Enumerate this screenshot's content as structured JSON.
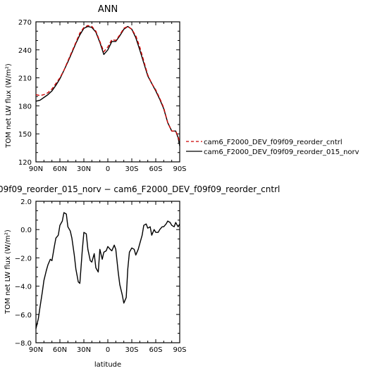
{
  "chart_data": [
    {
      "type": "line",
      "title": "ANN",
      "xlabel": "",
      "ylabel": "TOM net LW flux (W/m²)",
      "x_ticks": [
        90,
        60,
        30,
        0,
        -30,
        -60,
        -90
      ],
      "x_tick_labels": [
        "90N",
        "60N",
        "30N",
        "0",
        "30S",
        "60S",
        "90S"
      ],
      "xlim": [
        90,
        -90
      ],
      "y_ticks": [
        120,
        150,
        180,
        210,
        240,
        270
      ],
      "y_tick_labels": [
        "120",
        "150",
        "180",
        "210",
        "240",
        "270"
      ],
      "ylim": [
        120,
        270
      ],
      "grid": false,
      "legend_position": "right",
      "series": [
        {
          "name": "cam6_F2000_DEV_f09f09_reorder_cntrl",
          "color": "#cc0000",
          "line_style": "dashed",
          "x": [
            90,
            85,
            80,
            75,
            70,
            65,
            60,
            55,
            50,
            45,
            40,
            35,
            30,
            25,
            20,
            15,
            10,
            5,
            0,
            -5,
            -10,
            -15,
            -20,
            -25,
            -30,
            -35,
            -40,
            -45,
            -50,
            -55,
            -60,
            -65,
            -70,
            -75,
            -80,
            -85,
            -88,
            -90
          ],
          "y": [
            192,
            191,
            192,
            194,
            198,
            204,
            210,
            218,
            228,
            238,
            248,
            258,
            264,
            266,
            265,
            260,
            249,
            238,
            243,
            251,
            250,
            256,
            263,
            265,
            262,
            255,
            243,
            228,
            213,
            204,
            197,
            188,
            178,
            162,
            153,
            153,
            147,
            141
          ]
        },
        {
          "name": "cam6_F2000_DEV_f09f09_reorder_015_norv",
          "color": "#000000",
          "line_style": "solid",
          "x": [
            90,
            85,
            80,
            75,
            70,
            65,
            60,
            55,
            50,
            45,
            40,
            35,
            30,
            25,
            20,
            15,
            10,
            5,
            0,
            -5,
            -10,
            -15,
            -20,
            -25,
            -30,
            -35,
            -40,
            -45,
            -50,
            -55,
            -60,
            -65,
            -70,
            -75,
            -80,
            -85,
            -88,
            -90
          ],
          "y": [
            185,
            186,
            189,
            192,
            196,
            202,
            209,
            218,
            227,
            237,
            247,
            256,
            263,
            265,
            264,
            259,
            248,
            235,
            240,
            249,
            249,
            255,
            262,
            265,
            262,
            253,
            240,
            226,
            212,
            204,
            196,
            187,
            177,
            162,
            153,
            153,
            146,
            137
          ]
        }
      ]
    },
    {
      "type": "line",
      "title": "09f09_reorder_015_norv − cam6_F2000_DEV_f09f09_reorder_cntrl",
      "xlabel": "latitude",
      "ylabel": "TOM net LW flux (W/m²)",
      "x_ticks": [
        90,
        60,
        30,
        0,
        -30,
        -60,
        -90
      ],
      "x_tick_labels": [
        "90N",
        "60N",
        "30N",
        "0",
        "30S",
        "60S",
        "90S"
      ],
      "xlim": [
        90,
        -90
      ],
      "y_ticks": [
        -8.0,
        -6.0,
        -4.0,
        -2.0,
        0.0,
        2.0
      ],
      "y_tick_labels": [
        "−8.0",
        "−6.0",
        "−4.0",
        "−2.0",
        "0.0",
        "2.0"
      ],
      "ylim": [
        -8.0,
        2.0
      ],
      "grid": false,
      "series": [
        {
          "color": "#000000",
          "line_style": "solid",
          "x": [
            90,
            87,
            85,
            82,
            80,
            77,
            75,
            72,
            70,
            67,
            65,
            62,
            60,
            57,
            55,
            52,
            50,
            47,
            45,
            42,
            40,
            37,
            35,
            32,
            30,
            27,
            25,
            22,
            20,
            17,
            15,
            12,
            10,
            7,
            5,
            2,
            0,
            -3,
            -5,
            -8,
            -10,
            -13,
            -15,
            -18,
            -20,
            -23,
            -25,
            -27,
            -30,
            -33,
            -35,
            -38,
            -40,
            -43,
            -45,
            -48,
            -50,
            -53,
            -55,
            -58,
            -60,
            -63,
            -65,
            -68,
            -70,
            -73,
            -75,
            -78,
            -80,
            -83,
            -85,
            -88,
            -90
          ],
          "y": [
            -7.0,
            -6.3,
            -5.5,
            -4.4,
            -3.6,
            -2.9,
            -2.5,
            -2.1,
            -2.2,
            -1.2,
            -0.6,
            -0.4,
            0.3,
            0.6,
            1.2,
            1.1,
            0.2,
            -0.1,
            -0.6,
            -1.8,
            -2.8,
            -3.7,
            -3.8,
            -1.5,
            -0.2,
            -0.3,
            -1.4,
            -2.2,
            -2.3,
            -1.7,
            -2.7,
            -3.0,
            -1.4,
            -2.1,
            -1.6,
            -1.5,
            -1.2,
            -1.4,
            -1.5,
            -1.1,
            -1.4,
            -3.0,
            -3.9,
            -4.6,
            -5.2,
            -4.8,
            -2.8,
            -1.6,
            -1.3,
            -1.4,
            -1.8,
            -1.4,
            -1.0,
            -0.4,
            0.3,
            0.4,
            0.1,
            0.2,
            -0.4,
            0.0,
            -0.2,
            -0.2,
            0.0,
            0.2,
            0.2,
            0.4,
            0.6,
            0.5,
            0.3,
            0.2,
            0.5,
            0.2,
            0.4
          ]
        }
      ]
    }
  ]
}
